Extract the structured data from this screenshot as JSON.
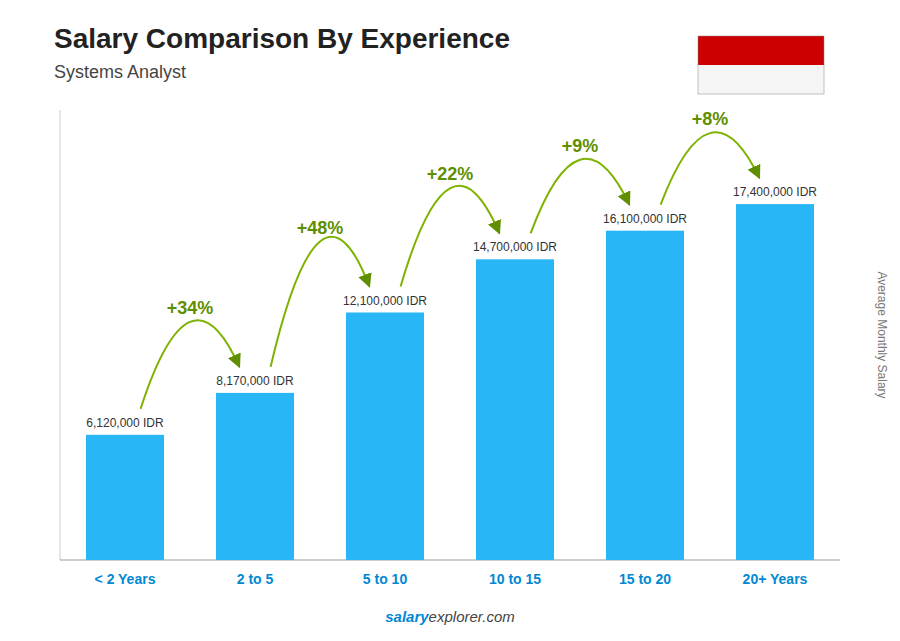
{
  "chart_data": {
    "type": "bar",
    "title": "Salary Comparison By Experience",
    "subtitle": "Systems Analyst",
    "ylabel": "Average Monthly Salary",
    "categories": [
      "< 2 Years",
      "2 to 5",
      "5 to 10",
      "10 to 15",
      "15 to 20",
      "20+ Years"
    ],
    "values": [
      6120000,
      8170000,
      12100000,
      14700000,
      16100000,
      17400000
    ],
    "value_labels": [
      "6,120,000 IDR",
      "8,170,000 IDR",
      "12,100,000 IDR",
      "14,700,000 IDR",
      "16,100,000 IDR",
      "17,400,000 IDR"
    ],
    "data_labels": true,
    "annotations": [
      "+34%",
      "+48%",
      "+22%",
      "+9%",
      "+8%"
    ],
    "footer": [
      "salary",
      "explorer.com"
    ],
    "color": "#29b6f6",
    "ylim": [
      0,
      22000000
    ],
    "tick_labels": "x",
    "grid": false
  }
}
